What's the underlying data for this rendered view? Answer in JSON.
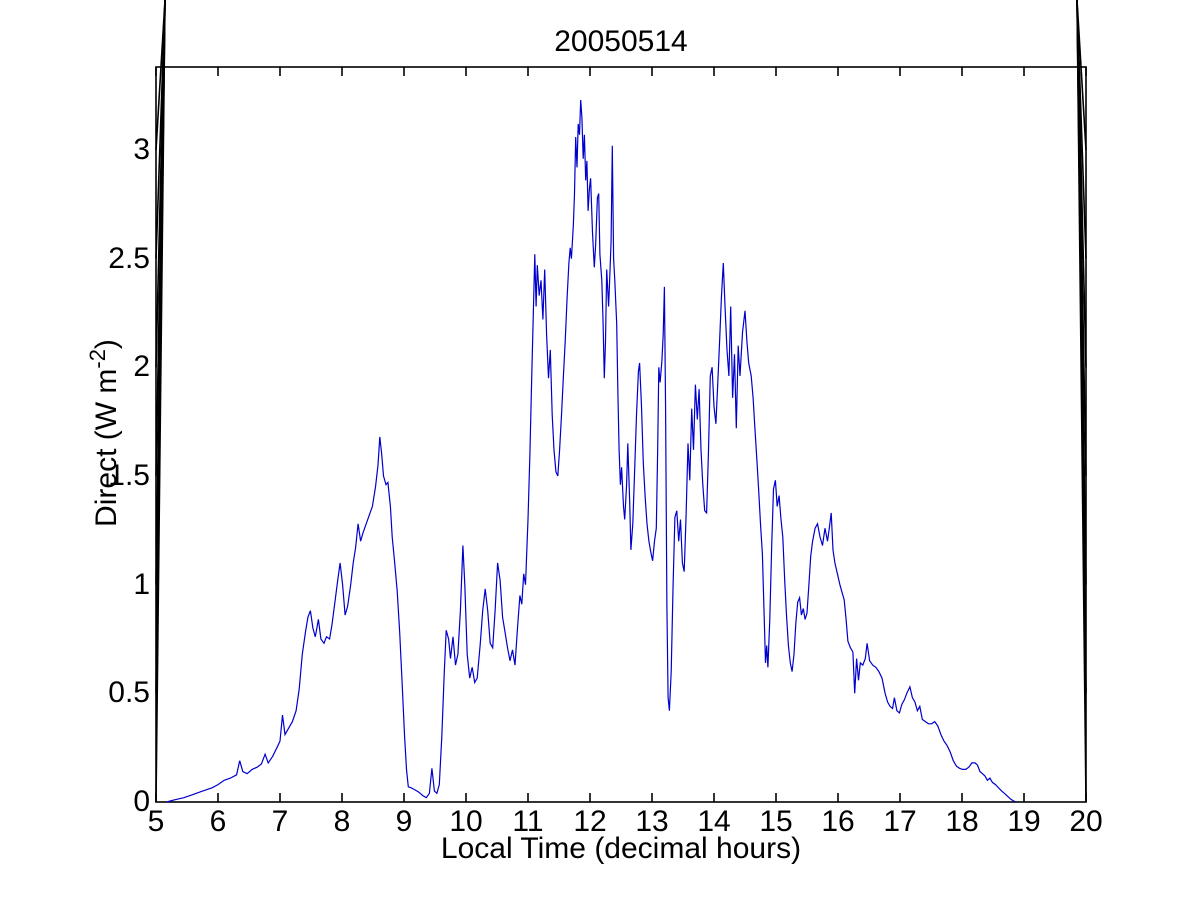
{
  "figure": {
    "title": "20050514",
    "x_axis_label": "Local Time (decimal hours)",
    "y_axis_label_main": "Direct (W m",
    "y_axis_label_sup": "-2",
    "y_axis_label_close": ")",
    "axis_color": "#000000",
    "background_color": "#ffffff"
  },
  "chart_data": {
    "type": "line",
    "title": "20050514",
    "xlabel": "Local Time (decimal hours)",
    "ylabel": "Direct (W m^-2)",
    "xlim": [
      5,
      20
    ],
    "ylim": [
      0,
      3.3819
    ],
    "x_ticks": [
      5,
      6,
      7,
      8,
      9,
      10,
      11,
      12,
      13,
      14,
      15,
      16,
      17,
      18,
      19,
      20
    ],
    "y_ticks": [
      0,
      0.5,
      1,
      1.5,
      2,
      2.5,
      3
    ],
    "y_tick_labels": [
      "0",
      "0.5",
      "1",
      "1.5",
      "2",
      "2.5",
      "3"
    ],
    "grid": false,
    "legend": "none",
    "line_color": "#0000CD",
    "points": [
      [
        5.17,
        0
      ],
      [
        5.3,
        0.01
      ],
      [
        5.45,
        0.02
      ],
      [
        5.6,
        0.035
      ],
      [
        5.75,
        0.05
      ],
      [
        5.9,
        0.065
      ],
      [
        6.0,
        0.08
      ],
      [
        6.1,
        0.1
      ],
      [
        6.2,
        0.11
      ],
      [
        6.3,
        0.125
      ],
      [
        6.35,
        0.19
      ],
      [
        6.4,
        0.14
      ],
      [
        6.47,
        0.13
      ],
      [
        6.55,
        0.15
      ],
      [
        6.63,
        0.16
      ],
      [
        6.7,
        0.175
      ],
      [
        6.76,
        0.22
      ],
      [
        6.81,
        0.18
      ],
      [
        6.88,
        0.21
      ],
      [
        6.95,
        0.25
      ],
      [
        7.0,
        0.28
      ],
      [
        7.04,
        0.4
      ],
      [
        7.08,
        0.31
      ],
      [
        7.14,
        0.34
      ],
      [
        7.2,
        0.37
      ],
      [
        7.26,
        0.42
      ],
      [
        7.31,
        0.52
      ],
      [
        7.36,
        0.68
      ],
      [
        7.41,
        0.78
      ],
      [
        7.45,
        0.85
      ],
      [
        7.49,
        0.88
      ],
      [
        7.53,
        0.8
      ],
      [
        7.57,
        0.76
      ],
      [
        7.62,
        0.84
      ],
      [
        7.66,
        0.75
      ],
      [
        7.71,
        0.73
      ],
      [
        7.75,
        0.76
      ],
      [
        7.8,
        0.75
      ],
      [
        7.84,
        0.82
      ],
      [
        7.89,
        0.93
      ],
      [
        7.93,
        1.02
      ],
      [
        7.97,
        1.1
      ],
      [
        8.01,
        1.0
      ],
      [
        8.05,
        0.86
      ],
      [
        8.09,
        0.9
      ],
      [
        8.14,
        1.0
      ],
      [
        8.18,
        1.1
      ],
      [
        8.22,
        1.17
      ],
      [
        8.26,
        1.28
      ],
      [
        8.3,
        1.2
      ],
      [
        8.34,
        1.24
      ],
      [
        8.39,
        1.28
      ],
      [
        8.44,
        1.32
      ],
      [
        8.49,
        1.36
      ],
      [
        8.54,
        1.45
      ],
      [
        8.58,
        1.55
      ],
      [
        8.61,
        1.68
      ],
      [
        8.64,
        1.6
      ],
      [
        8.67,
        1.5
      ],
      [
        8.71,
        1.46
      ],
      [
        8.74,
        1.47
      ],
      [
        8.78,
        1.36
      ],
      [
        8.81,
        1.22
      ],
      [
        8.85,
        1.1
      ],
      [
        8.89,
        0.97
      ],
      [
        8.93,
        0.78
      ],
      [
        8.97,
        0.55
      ],
      [
        9.01,
        0.3
      ],
      [
        9.04,
        0.15
      ],
      [
        9.07,
        0.07
      ],
      [
        9.12,
        0.065
      ],
      [
        9.18,
        0.055
      ],
      [
        9.24,
        0.045
      ],
      [
        9.3,
        0.03
      ],
      [
        9.36,
        0.02
      ],
      [
        9.41,
        0.04
      ],
      [
        9.45,
        0.155
      ],
      [
        9.49,
        0.05
      ],
      [
        9.53,
        0.04
      ],
      [
        9.57,
        0.08
      ],
      [
        9.61,
        0.3
      ],
      [
        9.65,
        0.6
      ],
      [
        9.68,
        0.79
      ],
      [
        9.72,
        0.75
      ],
      [
        9.75,
        0.66
      ],
      [
        9.79,
        0.76
      ],
      [
        9.83,
        0.63
      ],
      [
        9.87,
        0.68
      ],
      [
        9.91,
        0.88
      ],
      [
        9.95,
        1.18
      ],
      [
        9.98,
        1.0
      ],
      [
        10.02,
        0.68
      ],
      [
        10.06,
        0.57
      ],
      [
        10.1,
        0.62
      ],
      [
        10.14,
        0.55
      ],
      [
        10.18,
        0.57
      ],
      [
        10.23,
        0.73
      ],
      [
        10.27,
        0.88
      ],
      [
        10.31,
        0.98
      ],
      [
        10.35,
        0.88
      ],
      [
        10.39,
        0.73
      ],
      [
        10.43,
        0.71
      ],
      [
        10.47,
        0.88
      ],
      [
        10.51,
        1.1
      ],
      [
        10.55,
        1.02
      ],
      [
        10.59,
        0.85
      ],
      [
        10.63,
        0.78
      ],
      [
        10.67,
        0.71
      ],
      [
        10.71,
        0.65
      ],
      [
        10.75,
        0.7
      ],
      [
        10.79,
        0.63
      ],
      [
        10.83,
        0.8
      ],
      [
        10.87,
        0.95
      ],
      [
        10.9,
        0.91
      ],
      [
        10.93,
        1.05
      ],
      [
        10.96,
        1.0
      ],
      [
        11.0,
        1.3
      ],
      [
        11.03,
        1.6
      ],
      [
        11.06,
        1.95
      ],
      [
        11.09,
        2.3
      ],
      [
        11.11,
        2.52
      ],
      [
        11.13,
        2.28
      ],
      [
        11.15,
        2.47
      ],
      [
        11.18,
        2.33
      ],
      [
        11.21,
        2.4
      ],
      [
        11.24,
        2.22
      ],
      [
        11.27,
        2.45
      ],
      [
        11.3,
        2.15
      ],
      [
        11.33,
        1.95
      ],
      [
        11.36,
        2.08
      ],
      [
        11.39,
        1.78
      ],
      [
        11.42,
        1.62
      ],
      [
        11.45,
        1.52
      ],
      [
        11.48,
        1.5
      ],
      [
        11.51,
        1.62
      ],
      [
        11.54,
        1.78
      ],
      [
        11.57,
        1.95
      ],
      [
        11.6,
        2.12
      ],
      [
        11.63,
        2.32
      ],
      [
        11.66,
        2.48
      ],
      [
        11.68,
        2.55
      ],
      [
        11.7,
        2.5
      ],
      [
        11.73,
        2.65
      ],
      [
        11.75,
        2.8
      ],
      [
        11.77,
        3.06
      ],
      [
        11.79,
        2.92
      ],
      [
        11.81,
        3.12
      ],
      [
        11.83,
        3.07
      ],
      [
        11.85,
        3.23
      ],
      [
        11.87,
        3.15
      ],
      [
        11.89,
        2.96
      ],
      [
        11.91,
        3.07
      ],
      [
        11.93,
        2.86
      ],
      [
        11.95,
        2.95
      ],
      [
        11.97,
        2.72
      ],
      [
        11.99,
        2.82
      ],
      [
        12.01,
        2.87
      ],
      [
        12.04,
        2.62
      ],
      [
        12.07,
        2.46
      ],
      [
        12.09,
        2.56
      ],
      [
        12.12,
        2.78
      ],
      [
        12.14,
        2.8
      ],
      [
        12.16,
        2.52
      ],
      [
        12.19,
        2.4
      ],
      [
        12.21,
        2.22
      ],
      [
        12.23,
        1.95
      ],
      [
        12.25,
        2.12
      ],
      [
        12.27,
        2.45
      ],
      [
        12.3,
        2.28
      ],
      [
        12.32,
        2.42
      ],
      [
        12.34,
        2.58
      ],
      [
        12.36,
        3.02
      ],
      [
        12.38,
        2.5
      ],
      [
        12.4,
        2.4
      ],
      [
        12.43,
        2.2
      ],
      [
        12.45,
        1.88
      ],
      [
        12.47,
        1.62
      ],
      [
        12.49,
        1.46
      ],
      [
        12.51,
        1.54
      ],
      [
        12.54,
        1.36
      ],
      [
        12.56,
        1.3
      ],
      [
        12.59,
        1.46
      ],
      [
        12.61,
        1.65
      ],
      [
        12.64,
        1.38
      ],
      [
        12.66,
        1.16
      ],
      [
        12.69,
        1.28
      ],
      [
        12.72,
        1.52
      ],
      [
        12.75,
        1.78
      ],
      [
        12.78,
        1.98
      ],
      [
        12.8,
        2.02
      ],
      [
        12.83,
        1.82
      ],
      [
        12.86,
        1.56
      ],
      [
        12.89,
        1.4
      ],
      [
        12.92,
        1.28
      ],
      [
        12.95,
        1.2
      ],
      [
        12.98,
        1.15
      ],
      [
        13.01,
        1.11
      ],
      [
        13.04,
        1.2
      ],
      [
        13.07,
        1.26
      ],
      [
        13.09,
        1.6
      ],
      [
        13.11,
        2.0
      ],
      [
        13.13,
        1.93
      ],
      [
        13.16,
        2.03
      ],
      [
        13.18,
        2.15
      ],
      [
        13.2,
        2.37
      ],
      [
        13.22,
        1.8
      ],
      [
        13.24,
        0.9
      ],
      [
        13.26,
        0.48
      ],
      [
        13.28,
        0.42
      ],
      [
        13.31,
        0.6
      ],
      [
        13.34,
        1.0
      ],
      [
        13.37,
        1.31
      ],
      [
        13.4,
        1.34
      ],
      [
        13.43,
        1.2
      ],
      [
        13.46,
        1.3
      ],
      [
        13.49,
        1.1
      ],
      [
        13.52,
        1.06
      ],
      [
        13.55,
        1.32
      ],
      [
        13.58,
        1.65
      ],
      [
        13.61,
        1.48
      ],
      [
        13.64,
        1.81
      ],
      [
        13.67,
        1.62
      ],
      [
        13.7,
        1.92
      ],
      [
        13.73,
        1.76
      ],
      [
        13.76,
        1.9
      ],
      [
        13.79,
        1.62
      ],
      [
        13.82,
        1.46
      ],
      [
        13.85,
        1.34
      ],
      [
        13.88,
        1.33
      ],
      [
        13.91,
        1.6
      ],
      [
        13.94,
        1.96
      ],
      [
        13.97,
        2.0
      ],
      [
        14.0,
        1.82
      ],
      [
        14.03,
        1.74
      ],
      [
        14.06,
        1.92
      ],
      [
        14.09,
        2.12
      ],
      [
        14.12,
        2.32
      ],
      [
        14.15,
        2.48
      ],
      [
        14.18,
        2.26
      ],
      [
        14.21,
        2.08
      ],
      [
        14.24,
        1.96
      ],
      [
        14.27,
        2.28
      ],
      [
        14.3,
        1.86
      ],
      [
        14.33,
        2.06
      ],
      [
        14.36,
        1.72
      ],
      [
        14.39,
        2.1
      ],
      [
        14.42,
        1.96
      ],
      [
        14.46,
        2.16
      ],
      [
        14.5,
        2.26
      ],
      [
        14.53,
        2.12
      ],
      [
        14.56,
        2.02
      ],
      [
        14.6,
        1.96
      ],
      [
        14.63,
        1.86
      ],
      [
        14.66,
        1.72
      ],
      [
        14.69,
        1.58
      ],
      [
        14.72,
        1.44
      ],
      [
        14.75,
        1.28
      ],
      [
        14.78,
        1.14
      ],
      [
        14.81,
        0.85
      ],
      [
        14.83,
        0.64
      ],
      [
        14.85,
        0.72
      ],
      [
        14.87,
        0.62
      ],
      [
        14.9,
        0.84
      ],
      [
        14.93,
        1.18
      ],
      [
        14.96,
        1.44
      ],
      [
        14.99,
        1.48
      ],
      [
        15.02,
        1.36
      ],
      [
        15.05,
        1.41
      ],
      [
        15.08,
        1.3
      ],
      [
        15.11,
        1.22
      ],
      [
        15.14,
        1.02
      ],
      [
        15.17,
        0.86
      ],
      [
        15.2,
        0.72
      ],
      [
        15.23,
        0.64
      ],
      [
        15.26,
        0.6
      ],
      [
        15.29,
        0.68
      ],
      [
        15.32,
        0.82
      ],
      [
        15.35,
        0.92
      ],
      [
        15.38,
        0.94
      ],
      [
        15.41,
        0.86
      ],
      [
        15.44,
        0.89
      ],
      [
        15.47,
        0.84
      ],
      [
        15.5,
        0.87
      ],
      [
        15.53,
        1.0
      ],
      [
        15.56,
        1.13
      ],
      [
        15.59,
        1.2
      ],
      [
        15.63,
        1.26
      ],
      [
        15.67,
        1.28
      ],
      [
        15.71,
        1.22
      ],
      [
        15.75,
        1.18
      ],
      [
        15.79,
        1.26
      ],
      [
        15.83,
        1.2
      ],
      [
        15.86,
        1.26
      ],
      [
        15.89,
        1.33
      ],
      [
        15.92,
        1.16
      ],
      [
        15.95,
        1.1
      ],
      [
        15.99,
        1.05
      ],
      [
        16.03,
        1.0
      ],
      [
        16.06,
        0.97
      ],
      [
        16.1,
        0.93
      ],
      [
        16.13,
        0.84
      ],
      [
        16.16,
        0.74
      ],
      [
        16.2,
        0.71
      ],
      [
        16.24,
        0.69
      ],
      [
        16.27,
        0.5
      ],
      [
        16.3,
        0.66
      ],
      [
        16.33,
        0.56
      ],
      [
        16.36,
        0.64
      ],
      [
        16.4,
        0.63
      ],
      [
        16.44,
        0.66
      ],
      [
        16.47,
        0.73
      ],
      [
        16.51,
        0.65
      ],
      [
        16.56,
        0.63
      ],
      [
        16.61,
        0.62
      ],
      [
        16.66,
        0.6
      ],
      [
        16.71,
        0.57
      ],
      [
        16.76,
        0.5
      ],
      [
        16.8,
        0.46
      ],
      [
        16.84,
        0.44
      ],
      [
        16.88,
        0.43
      ],
      [
        16.91,
        0.48
      ],
      [
        16.95,
        0.42
      ],
      [
        16.99,
        0.41
      ],
      [
        17.03,
        0.45
      ],
      [
        17.07,
        0.47
      ],
      [
        17.11,
        0.5
      ],
      [
        17.16,
        0.53
      ],
      [
        17.2,
        0.48
      ],
      [
        17.24,
        0.46
      ],
      [
        17.28,
        0.42
      ],
      [
        17.32,
        0.44
      ],
      [
        17.36,
        0.38
      ],
      [
        17.41,
        0.37
      ],
      [
        17.46,
        0.36
      ],
      [
        17.51,
        0.36
      ],
      [
        17.56,
        0.37
      ],
      [
        17.61,
        0.35
      ],
      [
        17.66,
        0.31
      ],
      [
        17.71,
        0.28
      ],
      [
        17.76,
        0.26
      ],
      [
        17.81,
        0.23
      ],
      [
        17.86,
        0.19
      ],
      [
        17.91,
        0.165
      ],
      [
        17.96,
        0.155
      ],
      [
        18.01,
        0.15
      ],
      [
        18.06,
        0.15
      ],
      [
        18.11,
        0.16
      ],
      [
        18.16,
        0.18
      ],
      [
        18.21,
        0.18
      ],
      [
        18.25,
        0.17
      ],
      [
        18.29,
        0.14
      ],
      [
        18.33,
        0.13
      ],
      [
        18.37,
        0.12
      ],
      [
        18.41,
        0.1
      ],
      [
        18.45,
        0.11
      ],
      [
        18.49,
        0.09
      ],
      [
        18.54,
        0.08
      ],
      [
        18.59,
        0.065
      ],
      [
        18.64,
        0.05
      ],
      [
        18.69,
        0.038
      ],
      [
        18.74,
        0.025
      ],
      [
        18.79,
        0.012
      ],
      [
        18.84,
        0.004
      ],
      [
        18.87,
        0.0
      ]
    ]
  }
}
